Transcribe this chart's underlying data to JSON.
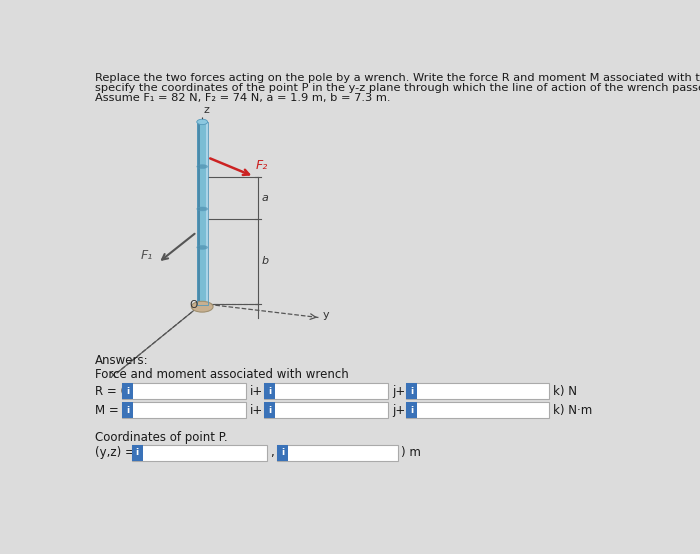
{
  "title_line1": "Replace the two forces acting on the pole by a wrench. Write the force R and moment M associated with the wrench as vectors and",
  "title_line2": "specify the coordinates of the point P in the y-z plane through which the line of action of the wrench passes.",
  "title_line3": "Assume F₁ = 82 N, F₂ = 74 N, a = 1.9 m, b = 7.3 m.",
  "answers_label": "Answers:",
  "force_moment_label": "Force and moment associated with wrench",
  "R_label": "R = (",
  "M_label": "M = (",
  "coords_label": "Coordinates of point P.",
  "yz_label": "(y,z) = (",
  "kN_label": "k) N",
  "kNm_label": "k) N·m",
  "m_label": ") m",
  "plus_i": "i+",
  "plus_j": "j+",
  "comma": ",",
  "bg_color": "#dcdcdc",
  "box_bg": "#ffffff",
  "input_blue": "#3a72b8",
  "text_color": "#1a1a1a",
  "border_color": "#aaaaaa",
  "font_size_title": 8.2,
  "font_size_body": 8.5,
  "font_size_label": 8.5,
  "pole_color_main": "#7bbdd4",
  "pole_color_dark": "#4a8aaa",
  "pole_color_light": "#aad4e8",
  "f2_color": "#cc2222",
  "f1_color": "#555555",
  "line_color": "#555555",
  "axis_color": "#333333"
}
